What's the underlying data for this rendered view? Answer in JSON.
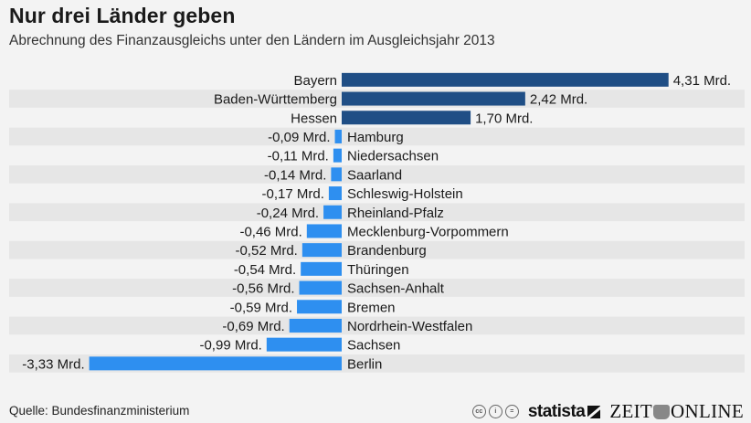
{
  "header": {
    "title": "Nur drei Länder geben",
    "subtitle": "Abrechnung des Finanzausgleichs unter den Ländern im Ausgleichsjahr 2013"
  },
  "colors": {
    "positive": "#1f4e85",
    "negative": "#2e8ff0",
    "band": "#e6e6e6",
    "background": "#f3f3f3"
  },
  "chart_data": {
    "type": "bar",
    "orientation": "horizontal",
    "title": "Nur drei Länder geben",
    "subtitle": "Abrechnung des Finanzausgleichs unter den Ländern im Ausgleichsjahr 2013",
    "unit": "Mrd.",
    "xlim": [
      -3.33,
      4.31
    ],
    "grid": false,
    "categories": [
      "Bayern",
      "Baden-Württemberg",
      "Hessen",
      "Hamburg",
      "Niedersachsen",
      "Saarland",
      "Schleswig-Holstein",
      "Rheinland-Pfalz",
      "Mecklenburg-Vorpommern",
      "Brandenburg",
      "Thüringen",
      "Sachsen-Anhalt",
      "Bremen",
      "Nordrhein-Westfalen",
      "Sachsen",
      "Berlin"
    ],
    "values": [
      4.31,
      2.42,
      1.7,
      -0.09,
      -0.11,
      -0.14,
      -0.17,
      -0.24,
      -0.46,
      -0.52,
      -0.54,
      -0.56,
      -0.59,
      -0.69,
      -0.99,
      -3.33
    ],
    "labels": [
      "4,31 Mrd.",
      "2,42 Mrd.",
      "1,70 Mrd.",
      "-0,09 Mrd.",
      "-0,11 Mrd.",
      "-0,14 Mrd.",
      "-0,17 Mrd.",
      "-0,24 Mrd.",
      "-0,46 Mrd.",
      "-0,52 Mrd.",
      "-0,54 Mrd.",
      "-0,56 Mrd.",
      "-0,59 Mrd.",
      "-0,69 Mrd.",
      "-0,99 Mrd.",
      "-3,33 Mrd."
    ]
  },
  "footer": {
    "source": "Quelle: Bundesfinanzministerium",
    "cc_icons": [
      "cc-icon",
      "by-icon",
      "nd-icon"
    ],
    "cc_glyphs": [
      "cc",
      "i",
      "="
    ],
    "statista": "statista",
    "zeit_left": "ZEIT",
    "zeit_right": "ONLINE"
  }
}
